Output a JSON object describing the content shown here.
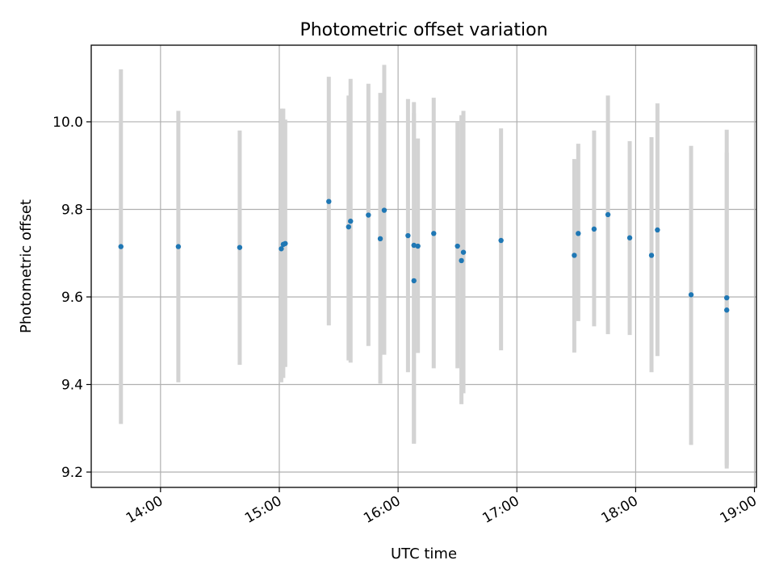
{
  "chart_data": {
    "type": "scatter",
    "title": "Photometric offset variation",
    "xlabel": "UTC time",
    "ylabel": "Photometric offset",
    "x_ticks": [
      "14:00",
      "15:00",
      "16:00",
      "17:00",
      "18:00",
      "19:00"
    ],
    "y_ticks": [
      "9.2",
      "9.4",
      "9.6",
      "9.8",
      "10.0"
    ],
    "xlim": [
      "13:25",
      "19:01"
    ],
    "ylim": [
      9.165,
      10.175
    ],
    "grid": true,
    "colors": {
      "point": "#1f77b4",
      "errorbar": "#d3d3d3",
      "grid": "#b0b0b0"
    },
    "points": [
      {
        "time": "13:40",
        "y": 9.715,
        "err_low": 9.31,
        "err_high": 10.12
      },
      {
        "time": "14:09",
        "y": 9.715,
        "err_low": 9.405,
        "err_high": 10.025
      },
      {
        "time": "14:40",
        "y": 9.713,
        "err_low": 9.445,
        "err_high": 9.98
      },
      {
        "time": "15:01",
        "y": 9.71,
        "err_low": 9.405,
        "err_high": 10.03
      },
      {
        "time": "15:02",
        "y": 9.72,
        "err_low": 9.415,
        "err_high": 10.03
      },
      {
        "time": "15:03",
        "y": 9.722,
        "err_low": 9.44,
        "err_high": 10.005
      },
      {
        "time": "15:25",
        "y": 9.818,
        "err_low": 9.535,
        "err_high": 10.103
      },
      {
        "time": "15:35",
        "y": 9.76,
        "err_low": 9.455,
        "err_high": 10.06
      },
      {
        "time": "15:36",
        "y": 9.773,
        "err_low": 9.45,
        "err_high": 10.098
      },
      {
        "time": "15:45",
        "y": 9.787,
        "err_low": 9.488,
        "err_high": 10.087
      },
      {
        "time": "15:51",
        "y": 9.733,
        "err_low": 9.402,
        "err_high": 10.066
      },
      {
        "time": "15:53",
        "y": 9.798,
        "err_low": 9.468,
        "err_high": 10.13
      },
      {
        "time": "16:05",
        "y": 9.74,
        "err_low": 9.428,
        "err_high": 10.052
      },
      {
        "time": "16:08",
        "y": 9.718,
        "err_low": 9.265,
        "err_high": 10.045
      },
      {
        "time": "16:08",
        "y": 9.637,
        "err_low": 9.265,
        "err_high": 10.02
      },
      {
        "time": "16:10",
        "y": 9.716,
        "err_low": 9.472,
        "err_high": 9.962
      },
      {
        "time": "16:18",
        "y": 9.745,
        "err_low": 9.437,
        "err_high": 10.055
      },
      {
        "time": "16:30",
        "y": 9.716,
        "err_low": 9.437,
        "err_high": 10.0
      },
      {
        "time": "16:32",
        "y": 9.683,
        "err_low": 9.355,
        "err_high": 10.015
      },
      {
        "time": "16:33",
        "y": 9.702,
        "err_low": 9.38,
        "err_high": 10.025
      },
      {
        "time": "16:52",
        "y": 9.729,
        "err_low": 9.478,
        "err_high": 9.985
      },
      {
        "time": "17:29",
        "y": 9.695,
        "err_low": 9.473,
        "err_high": 9.915
      },
      {
        "time": "17:31",
        "y": 9.745,
        "err_low": 9.545,
        "err_high": 9.95
      },
      {
        "time": "17:39",
        "y": 9.755,
        "err_low": 9.533,
        "err_high": 9.98
      },
      {
        "time": "17:46",
        "y": 9.788,
        "err_low": 9.515,
        "err_high": 10.06
      },
      {
        "time": "17:57",
        "y": 9.735,
        "err_low": 9.513,
        "err_high": 9.956
      },
      {
        "time": "18:08",
        "y": 9.695,
        "err_low": 9.428,
        "err_high": 9.965
      },
      {
        "time": "18:11",
        "y": 9.753,
        "err_low": 9.465,
        "err_high": 10.042
      },
      {
        "time": "18:28",
        "y": 9.605,
        "err_low": 9.262,
        "err_high": 9.945
      },
      {
        "time": "18:46",
        "y": 9.598,
        "err_low": 9.215,
        "err_high": 9.982
      },
      {
        "time": "18:46",
        "y": 9.57,
        "err_low": 9.208,
        "err_high": 9.93
      }
    ]
  }
}
